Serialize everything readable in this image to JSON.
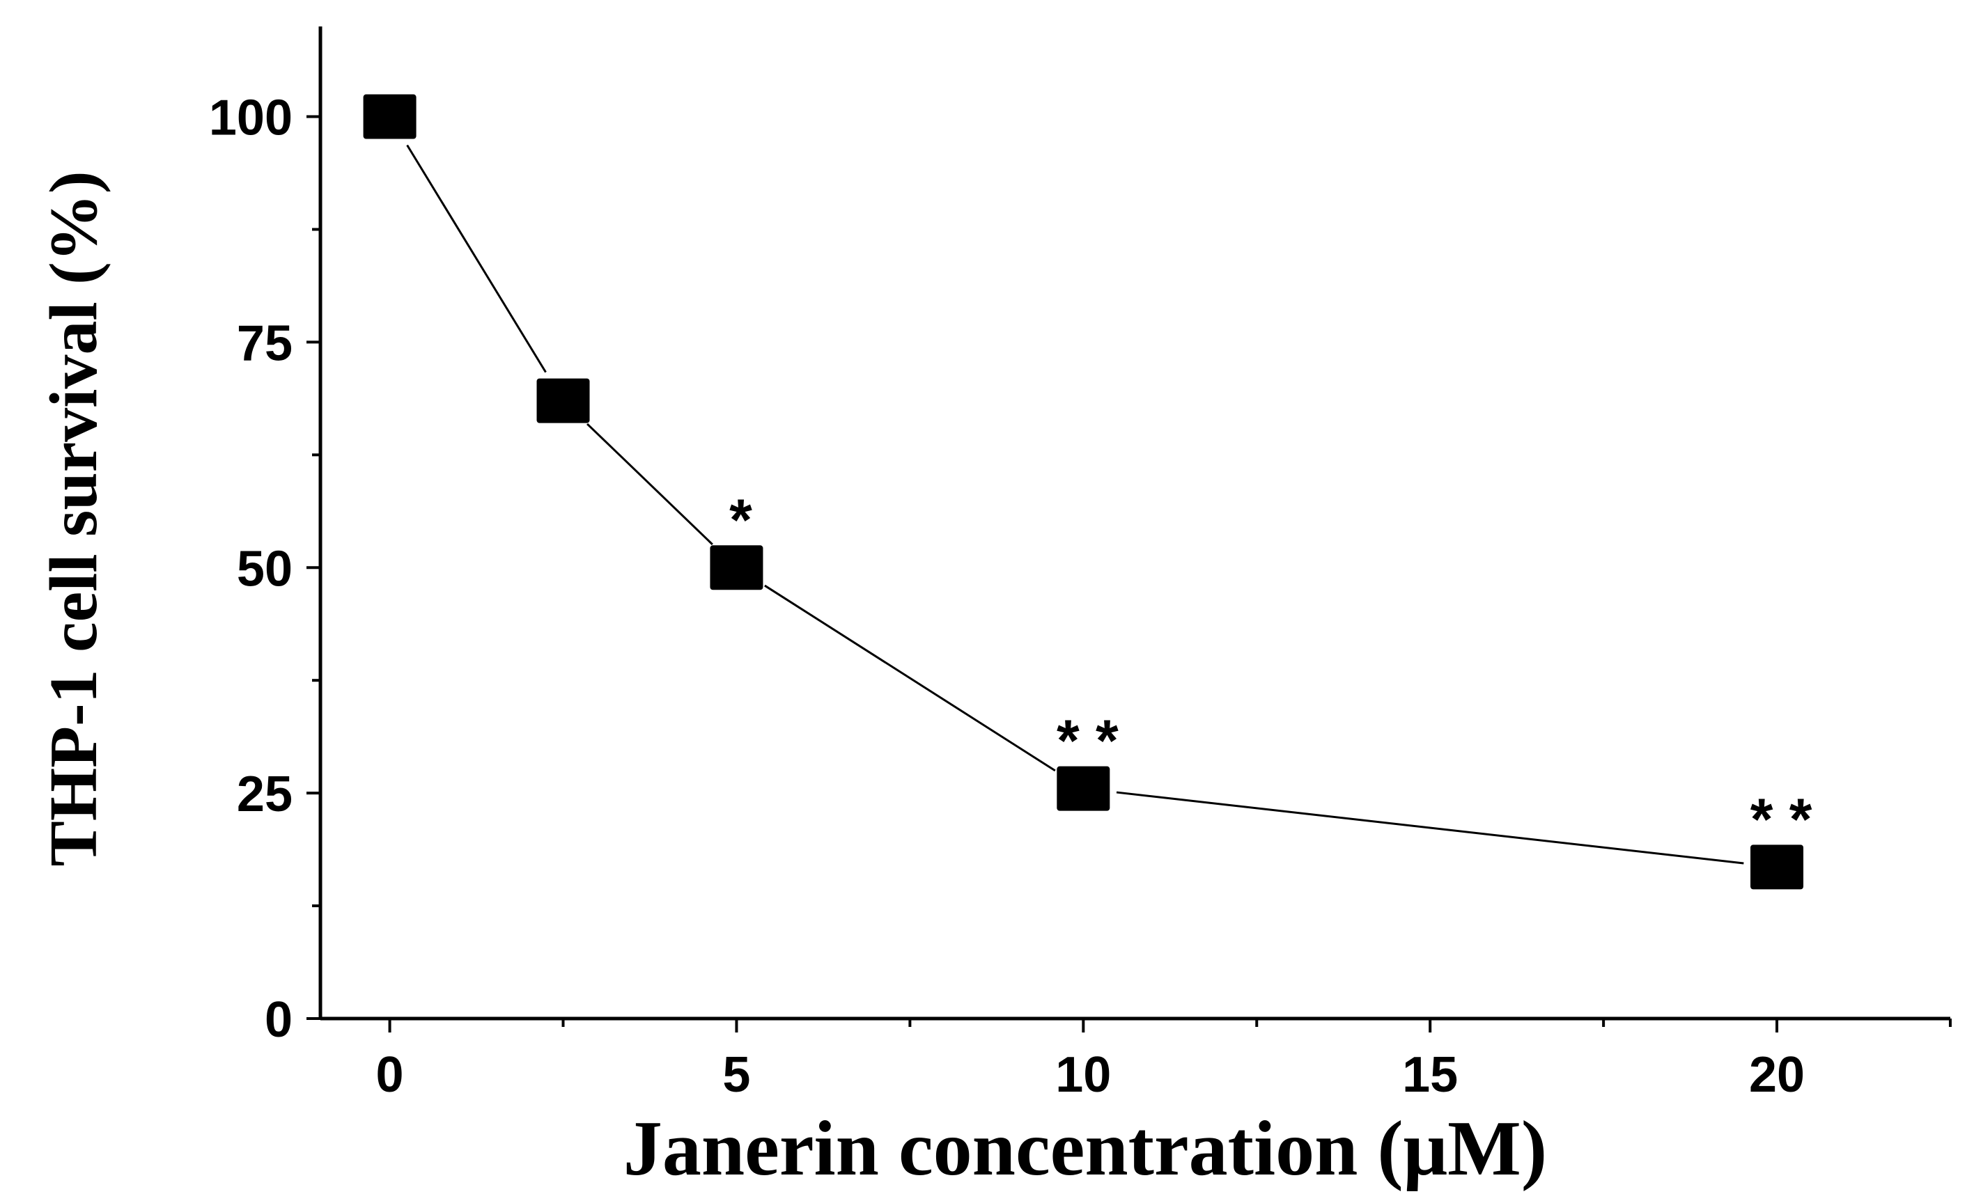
{
  "chart_data": {
    "type": "line",
    "title": "",
    "xlabel": "Janerin concentration (μM)",
    "ylabel": "THP-1 cell survival (%)",
    "xlim": [
      -1,
      22.5
    ],
    "ylim": [
      0,
      110
    ],
    "x_ticks": [
      0,
      5,
      10,
      15,
      20
    ],
    "x_minor_ticks": [
      2.5,
      7.5,
      12.5,
      17.5,
      22.5
    ],
    "y_ticks": [
      0,
      25,
      50,
      75,
      100
    ],
    "y_minor_ticks": [
      12.5,
      37.5,
      62.5,
      87.5
    ],
    "grid": false,
    "legend": "none",
    "series": [
      {
        "name": "THP-1 cell survival",
        "marker": "square",
        "color": "#000000",
        "x": [
          0,
          2.5,
          5,
          10,
          20
        ],
        "y": [
          100,
          68.5,
          50,
          25.5,
          16.8
        ],
        "annotations": [
          "",
          "",
          "*",
          "**",
          "**"
        ]
      }
    ]
  }
}
